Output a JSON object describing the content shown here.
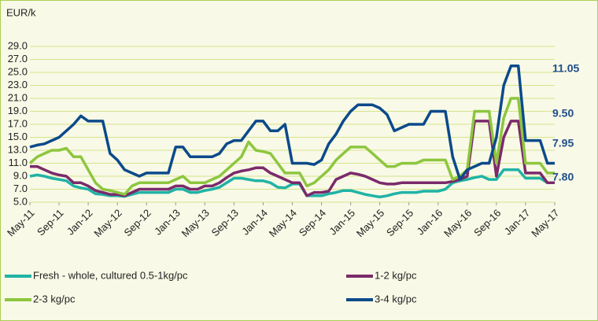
{
  "chart_data": {
    "type": "line",
    "y_label": "EUR/k",
    "categories": [
      "May-11",
      null,
      null,
      null,
      "Sep-11",
      null,
      null,
      null,
      "Jan-12",
      null,
      null,
      null,
      "May-12",
      null,
      null,
      null,
      "Sep-12",
      null,
      null,
      null,
      "Jan-13",
      null,
      null,
      null,
      "May-13",
      null,
      null,
      null,
      "Sep-13",
      null,
      null,
      null,
      "Jan-14",
      null,
      null,
      null,
      "May-14",
      null,
      null,
      null,
      "Sep-14",
      null,
      null,
      null,
      "Jan-15",
      null,
      null,
      null,
      "May-15",
      null,
      null,
      null,
      "Sep-15",
      null,
      null,
      null,
      "Jan-16",
      null,
      null,
      null,
      "May-16",
      null,
      null,
      null,
      "Sep-16",
      null,
      null,
      null,
      "Jan-17",
      null,
      null,
      null,
      "May-17"
    ],
    "series": [
      {
        "name": "Fresh - whole, cultured 0.5-1kg/pc",
        "color": "#20b3a6",
        "values": [
          9,
          9.2,
          9,
          8.7,
          8.5,
          8.3,
          7.5,
          7.2,
          7,
          6.3,
          6.2,
          6,
          6,
          5.9,
          6.2,
          6.5,
          6.5,
          6.5,
          6.5,
          6.5,
          7,
          7,
          6.5,
          6.5,
          6.8,
          7,
          7.3,
          8,
          8.7,
          8.7,
          8.5,
          8.3,
          8.3,
          8,
          7.3,
          7.2,
          7.8,
          7.8,
          6,
          6,
          6,
          6.3,
          6.5,
          6.8,
          6.8,
          6.5,
          6.2,
          6,
          5.8,
          6,
          6.3,
          6.5,
          6.5,
          6.5,
          6.7,
          6.7,
          6.7,
          7,
          8,
          8.3,
          8.5,
          8.8,
          9,
          8.5,
          8.5,
          10,
          10,
          10,
          8.7,
          8.7,
          8.7,
          8,
          8
        ]
      },
      {
        "name": "1-2 kg/pc",
        "color": "#7b2a6b",
        "values": [
          10.5,
          10.5,
          10,
          9.5,
          9.2,
          9,
          8,
          8,
          7.5,
          6.8,
          6.5,
          6.2,
          6.2,
          6,
          6.5,
          7,
          7,
          7,
          7,
          7,
          7.5,
          7.5,
          7,
          7,
          7.5,
          7.5,
          8,
          8.8,
          9.5,
          9.8,
          10,
          10.3,
          10.3,
          9.5,
          9,
          8.5,
          8,
          8,
          6,
          6.5,
          6.5,
          6.7,
          8.5,
          9,
          9.5,
          9.3,
          9,
          8.5,
          8,
          7.8,
          7.8,
          8,
          8,
          8,
          8,
          8,
          8,
          8,
          8.2,
          8.5,
          9,
          17.5,
          17.5,
          17.5,
          9,
          15,
          17.5,
          17.5,
          9.5,
          9.5,
          9.5,
          8,
          8
        ]
      },
      {
        "name": "2-3 kg/pc",
        "color": "#8dc63f",
        "values": [
          11,
          12,
          12.5,
          13,
          13,
          13.3,
          12,
          12,
          10,
          8,
          7,
          6.8,
          6.5,
          6.2,
          7.5,
          8,
          8,
          8,
          8,
          8,
          8.5,
          9,
          8,
          8,
          8,
          8.5,
          9,
          10,
          11,
          12,
          14.3,
          13,
          12.8,
          12.5,
          11,
          9.5,
          9.5,
          9.5,
          7.5,
          8,
          9,
          10,
          11.5,
          12.5,
          13.5,
          13.5,
          13.5,
          12.5,
          11.5,
          10.5,
          10.5,
          11,
          11,
          11,
          11.5,
          11.5,
          11.5,
          11.5,
          8.5,
          9,
          10,
          19,
          19,
          19,
          11,
          18,
          21,
          21,
          11,
          11,
          11,
          9.5,
          9.5
        ]
      },
      {
        "name": "3-4 kg/pc",
        "color": "#0b4a8b",
        "values": [
          13.5,
          13.8,
          14,
          14.5,
          15,
          16,
          17,
          18.3,
          17.5,
          17.5,
          17.5,
          12.5,
          11.5,
          10,
          9.5,
          9,
          9.5,
          9.5,
          9.5,
          9.5,
          13.5,
          13.5,
          12,
          12,
          12,
          12,
          12.5,
          14,
          14.5,
          14.5,
          16,
          17.5,
          17.5,
          16,
          16,
          17,
          11,
          11,
          11,
          10.8,
          11.5,
          14,
          15.5,
          17.5,
          19,
          20,
          20,
          20,
          19.5,
          18.5,
          16,
          16.5,
          17,
          17,
          17,
          19,
          19,
          19,
          12,
          8.5,
          10,
          10.5,
          11,
          11,
          15,
          23,
          26,
          26,
          14.5,
          14.5,
          14.5,
          11,
          11
        ]
      }
    ],
    "ylim": [
      5,
      29
    ],
    "yticks": [
      {
        "value": 5,
        "label": "5.0"
      },
      {
        "value": 7,
        "label": "7.0"
      },
      {
        "value": 9,
        "label": "9.0"
      },
      {
        "value": 11,
        "label": "11.0"
      },
      {
        "value": 13,
        "label": "13.0"
      },
      {
        "value": 15,
        "label": "15.0"
      },
      {
        "value": 17,
        "label": "17.0"
      },
      {
        "value": 19,
        "label": "19.0"
      },
      {
        "value": 21,
        "label": "21.0"
      },
      {
        "value": 23,
        "label": "23.0"
      },
      {
        "value": 25,
        "label": "25.0"
      },
      {
        "value": 27,
        "label": "27.0"
      },
      {
        "value": 29,
        "label": "29.0"
      }
    ],
    "annotations": [
      "11.05",
      "9.50",
      "7.95",
      "7.80"
    ],
    "grid": true
  }
}
